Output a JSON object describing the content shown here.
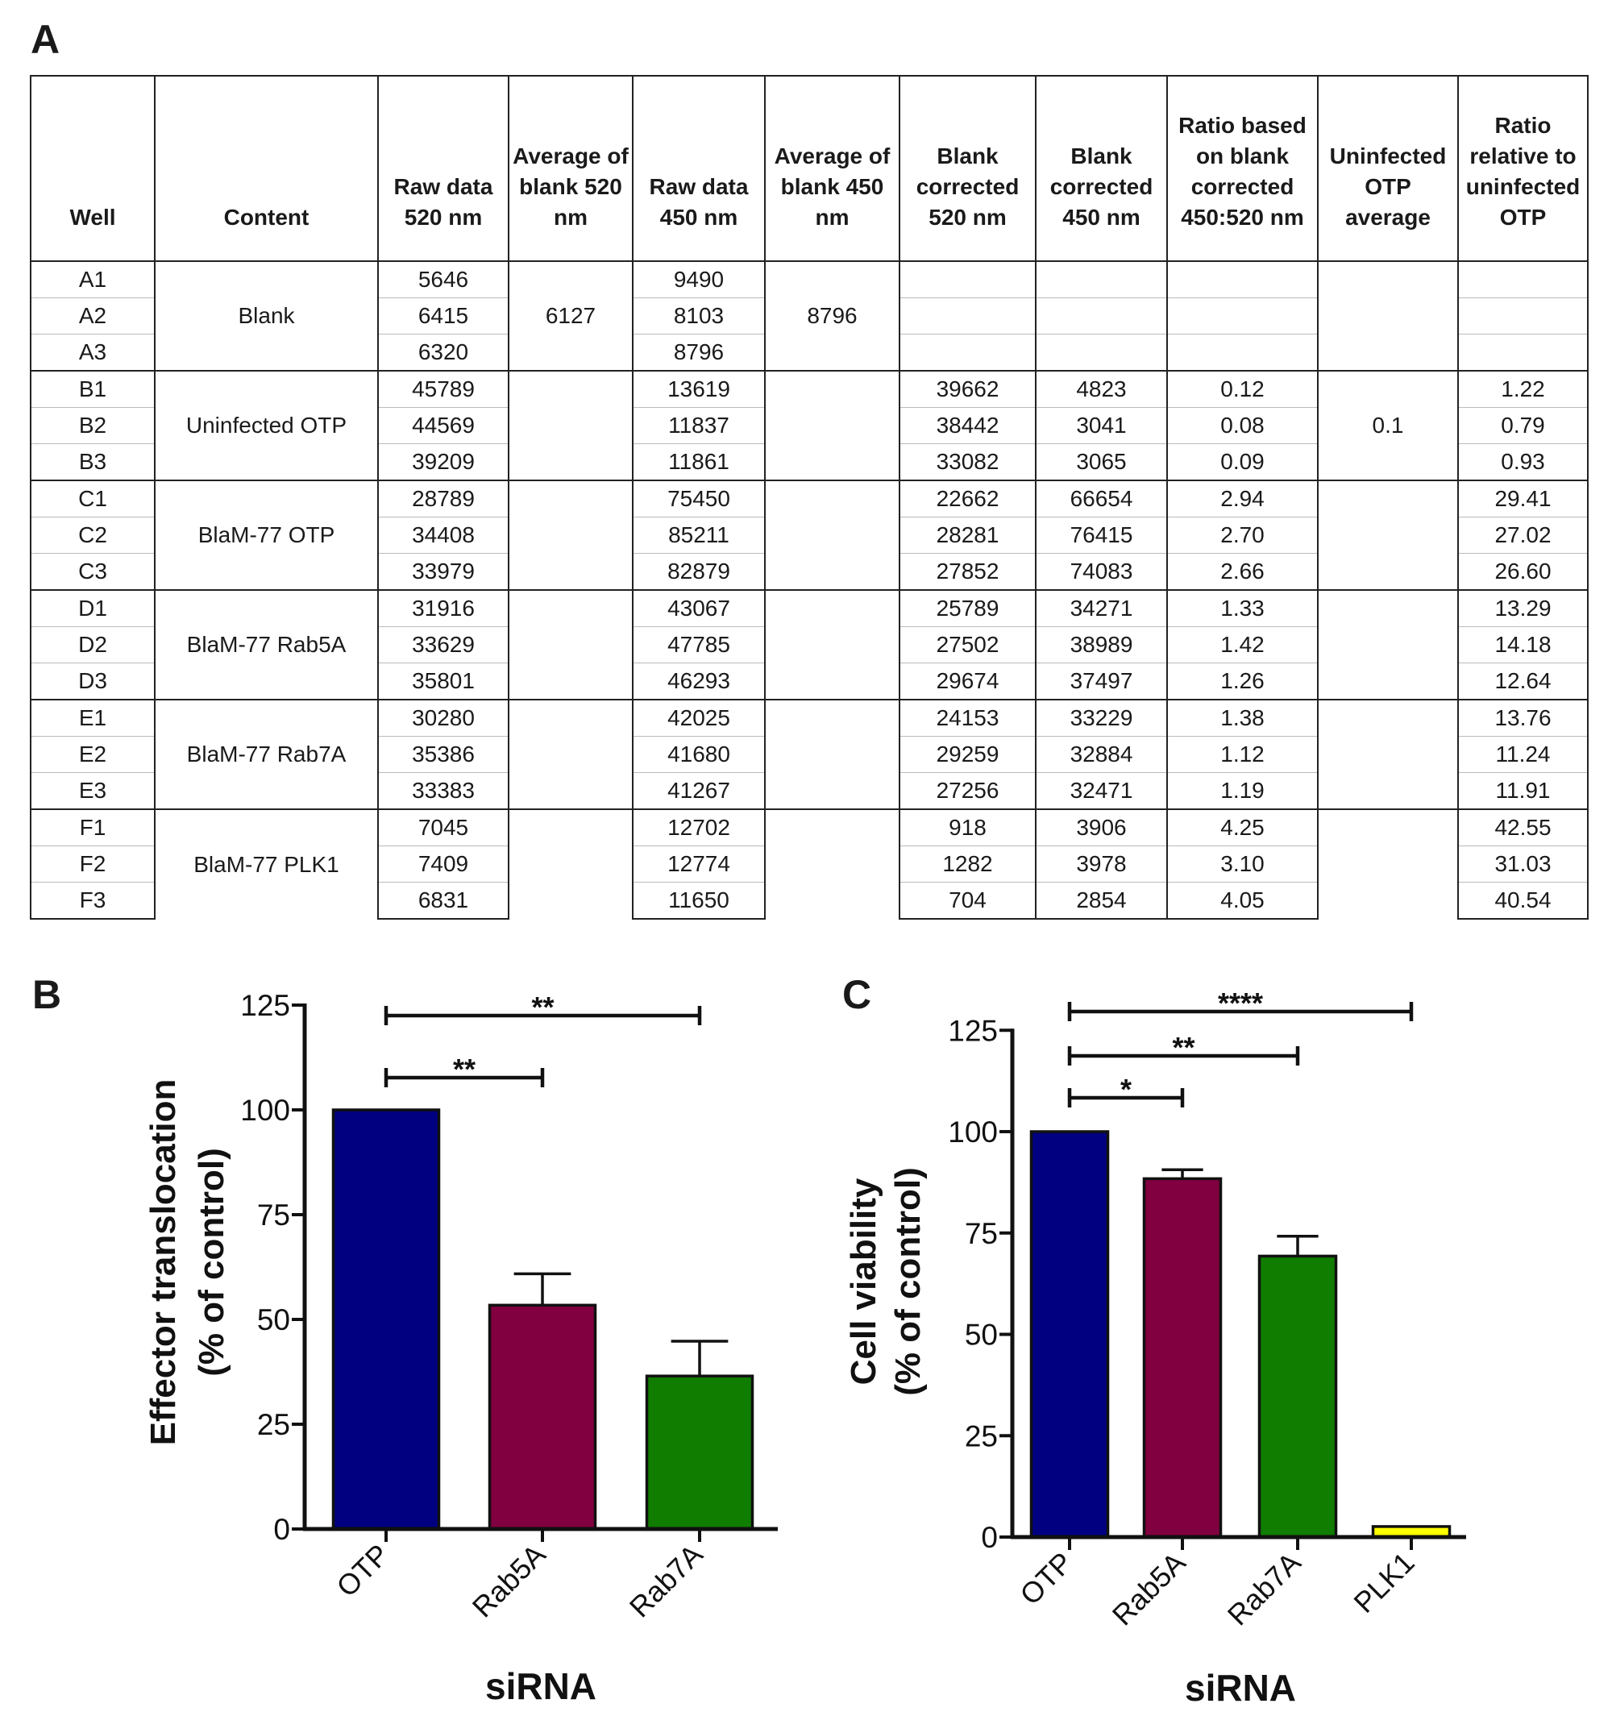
{
  "panels": {
    "a": "A",
    "b": "B",
    "c": "C"
  },
  "table": {
    "headers": [
      "Well",
      "Content",
      "Raw data 520 nm",
      "Average of blank 520 nm",
      "Raw data 450 nm",
      "Average of blank 450 nm",
      "Blank corrected 520 nm",
      "Blank corrected 450 nm",
      "Ratio based on blank corrected 450:520 nm",
      "Uninfected OTP average",
      "Ratio relative to uninfected OTP"
    ],
    "groups": [
      {
        "content": "Blank",
        "avg520": "6127",
        "avg450": "8796",
        "uninfected_avg": "",
        "rows": [
          {
            "well": "A1",
            "raw520": "5646",
            "raw450": "9490",
            "bc520": "",
            "bc450": "",
            "ratio": "",
            "rel": ""
          },
          {
            "well": "A2",
            "raw520": "6415",
            "raw450": "8103",
            "bc520": "",
            "bc450": "",
            "ratio": "",
            "rel": ""
          },
          {
            "well": "A3",
            "raw520": "6320",
            "raw450": "8796",
            "bc520": "",
            "bc450": "",
            "ratio": "",
            "rel": ""
          }
        ]
      },
      {
        "content": "Uninfected OTP",
        "avg520": "",
        "avg450": "",
        "uninfected_avg": "0.1",
        "rows": [
          {
            "well": "B1",
            "raw520": "45789",
            "raw450": "13619",
            "bc520": "39662",
            "bc450": "4823",
            "ratio": "0.12",
            "rel": "1.22"
          },
          {
            "well": "B2",
            "raw520": "44569",
            "raw450": "11837",
            "bc520": "38442",
            "bc450": "3041",
            "ratio": "0.08",
            "rel": "0.79"
          },
          {
            "well": "B3",
            "raw520": "39209",
            "raw450": "11861",
            "bc520": "33082",
            "bc450": "3065",
            "ratio": "0.09",
            "rel": "0.93"
          }
        ]
      },
      {
        "content": "BlaM-77 OTP",
        "avg520": "",
        "avg450": "",
        "uninfected_avg": "",
        "rows": [
          {
            "well": "C1",
            "raw520": "28789",
            "raw450": "75450",
            "bc520": "22662",
            "bc450": "66654",
            "ratio": "2.94",
            "rel": "29.41"
          },
          {
            "well": "C2",
            "raw520": "34408",
            "raw450": "85211",
            "bc520": "28281",
            "bc450": "76415",
            "ratio": "2.70",
            "rel": "27.02"
          },
          {
            "well": "C3",
            "raw520": "33979",
            "raw450": "82879",
            "bc520": "27852",
            "bc450": "74083",
            "ratio": "2.66",
            "rel": "26.60"
          }
        ]
      },
      {
        "content": "BlaM-77 Rab5A",
        "avg520": "",
        "avg450": "",
        "uninfected_avg": "",
        "rows": [
          {
            "well": "D1",
            "raw520": "31916",
            "raw450": "43067",
            "bc520": "25789",
            "bc450": "34271",
            "ratio": "1.33",
            "rel": "13.29"
          },
          {
            "well": "D2",
            "raw520": "33629",
            "raw450": "47785",
            "bc520": "27502",
            "bc450": "38989",
            "ratio": "1.42",
            "rel": "14.18"
          },
          {
            "well": "D3",
            "raw520": "35801",
            "raw450": "46293",
            "bc520": "29674",
            "bc450": "37497",
            "ratio": "1.26",
            "rel": "12.64"
          }
        ]
      },
      {
        "content": "BlaM-77 Rab7A",
        "avg520": "",
        "avg450": "",
        "uninfected_avg": "",
        "rows": [
          {
            "well": "E1",
            "raw520": "30280",
            "raw450": "42025",
            "bc520": "24153",
            "bc450": "33229",
            "ratio": "1.38",
            "rel": "13.76"
          },
          {
            "well": "E2",
            "raw520": "35386",
            "raw450": "41680",
            "bc520": "29259",
            "bc450": "32884",
            "ratio": "1.12",
            "rel": "11.24"
          },
          {
            "well": "E3",
            "raw520": "33383",
            "raw450": "41267",
            "bc520": "27256",
            "bc450": "32471",
            "ratio": "1.19",
            "rel": "11.91"
          }
        ]
      },
      {
        "content": "BlaM-77 PLK1",
        "avg520": "",
        "avg450": "",
        "uninfected_avg": "",
        "rows": [
          {
            "well": "F1",
            "raw520": "7045",
            "raw450": "12702",
            "bc520": "918",
            "bc450": "3906",
            "ratio": "4.25",
            "rel": "42.55"
          },
          {
            "well": "F2",
            "raw520": "7409",
            "raw450": "12774",
            "bc520": "1282",
            "bc450": "3978",
            "ratio": "3.10",
            "rel": "31.03"
          },
          {
            "well": "F3",
            "raw520": "6831",
            "raw450": "11650",
            "bc520": "704",
            "bc450": "2854",
            "ratio": "4.05",
            "rel": "40.54"
          }
        ]
      }
    ]
  },
  "chart_data": [
    {
      "type": "bar",
      "panel": "B",
      "categories": [
        "OTP",
        "Rab5A",
        "Rab7A"
      ],
      "values": [
        100,
        53.4,
        36.5
      ],
      "error_upper": [
        100,
        60.9,
        44.8
      ],
      "colors": [
        "#000080",
        "#800040",
        "#107c00"
      ],
      "xlabel": "siRNA",
      "ylabel": [
        "Effector translocation",
        "(% of control)"
      ],
      "ylim": [
        0,
        125
      ],
      "yticks": [
        "0",
        "25",
        "50",
        "75",
        "100",
        "125"
      ],
      "grid": false,
      "significance": [
        {
          "from": "OTP",
          "to": "Rab5A",
          "label": "**"
        },
        {
          "from": "OTP",
          "to": "Rab7A",
          "label": "**"
        }
      ]
    },
    {
      "type": "bar",
      "panel": "C",
      "categories": [
        "OTP",
        "Rab5A",
        "Rab7A",
        "PLK1"
      ],
      "values": [
        100,
        88.4,
        69.3,
        2.6
      ],
      "error_upper": [
        100,
        90.6,
        74.2,
        2.6
      ],
      "colors": [
        "#000080",
        "#800040",
        "#107c00",
        "#ffff00"
      ],
      "xlabel": "siRNA",
      "ylabel": [
        "Cell viability",
        "(% of control)"
      ],
      "ylim": [
        0,
        125
      ],
      "yticks": [
        "0",
        "25",
        "50",
        "75",
        "100",
        "125"
      ],
      "grid": false,
      "significance": [
        {
          "from": "OTP",
          "to": "Rab5A",
          "label": "*"
        },
        {
          "from": "OTP",
          "to": "Rab7A",
          "label": "**"
        },
        {
          "from": "OTP",
          "to": "PLK1",
          "label": "****"
        }
      ]
    }
  ]
}
